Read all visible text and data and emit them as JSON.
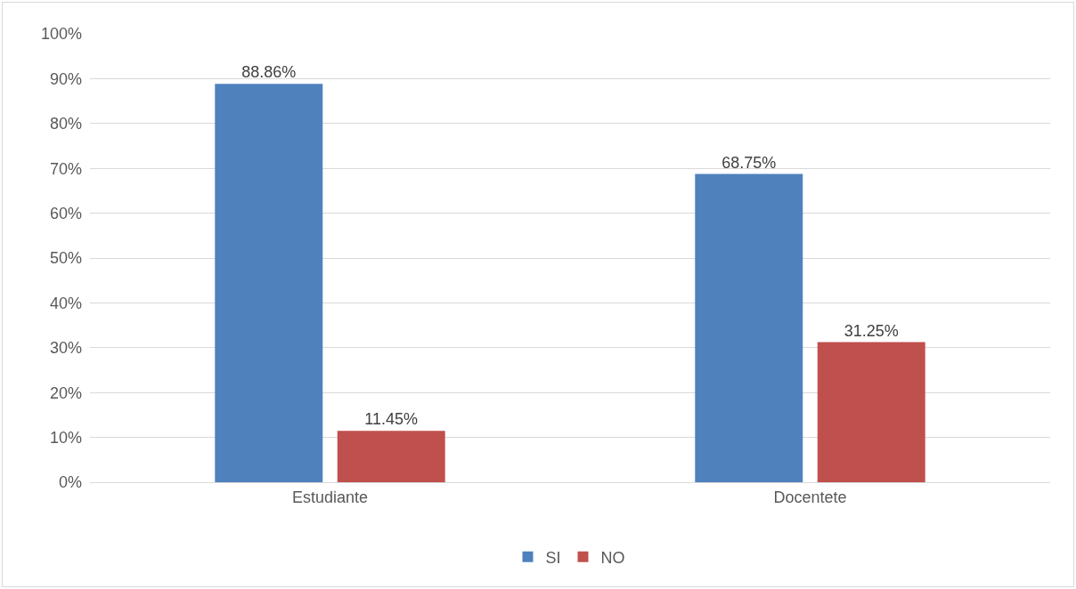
{
  "chart_data": {
    "type": "bar",
    "categories": [
      "Estudiante",
      "Docentete"
    ],
    "series": [
      {
        "name": "SI",
        "color": "#4f81bd",
        "values": [
          88.86,
          68.75
        ],
        "value_labels": [
          "88.86%",
          "68.75%"
        ]
      },
      {
        "name": "NO",
        "color": "#c0504d",
        "values": [
          11.45,
          31.25
        ],
        "value_labels": [
          "11.45%",
          "31.25%"
        ]
      }
    ],
    "ylim": [
      0,
      100
    ],
    "yticks": [
      {
        "value": 0,
        "label": "0%"
      },
      {
        "value": 10,
        "label": "10%"
      },
      {
        "value": 20,
        "label": "20%"
      },
      {
        "value": 30,
        "label": "30%"
      },
      {
        "value": 40,
        "label": "40%"
      },
      {
        "value": 50,
        "label": "50%"
      },
      {
        "value": 60,
        "label": "60%"
      },
      {
        "value": 70,
        "label": "70%"
      },
      {
        "value": 80,
        "label": "80%"
      },
      {
        "value": 90,
        "label": "90%"
      },
      {
        "value": 100,
        "label": "100%"
      }
    ],
    "grid": "y",
    "legend": "bottom"
  }
}
